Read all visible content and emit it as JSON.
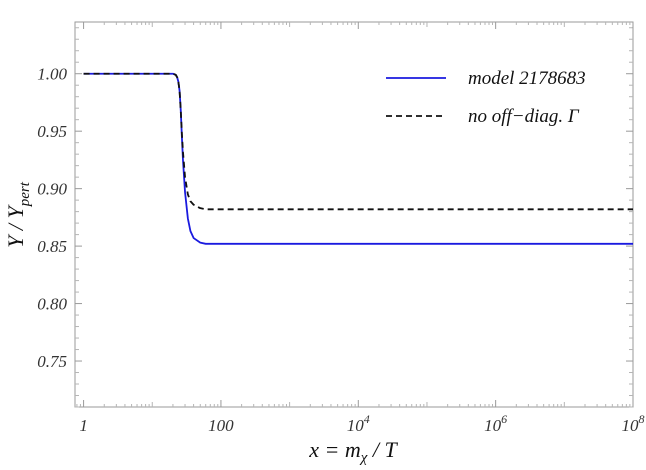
{
  "chart_data": {
    "type": "line",
    "xlabel": "x = m_χ / T",
    "ylabel": "Y / Y_pert",
    "x_scale": "log",
    "xlim": [
      0.75,
      100000000
    ],
    "ylim": [
      0.71,
      1.045
    ],
    "x_ticks": [
      {
        "value": 1,
        "label": "1"
      },
      {
        "value": 100,
        "label": "100"
      },
      {
        "value": 10000,
        "label": "10",
        "sup": "4"
      },
      {
        "value": 1000000,
        "label": "10",
        "sup": "6"
      },
      {
        "value": 100000000,
        "label": "10",
        "sup": "8"
      }
    ],
    "y_ticks": [
      {
        "value": 0.75,
        "label": "0.75"
      },
      {
        "value": 0.8,
        "label": "0.80"
      },
      {
        "value": 0.85,
        "label": "0.85"
      },
      {
        "value": 0.9,
        "label": "0.90"
      },
      {
        "value": 0.95,
        "label": "0.95"
      },
      {
        "value": 1.0,
        "label": "1.00"
      }
    ],
    "legend_position": "top-right",
    "series": [
      {
        "name": "model 2178683",
        "color": "#1a1adf",
        "dash": "solid",
        "x": [
          1,
          10,
          20,
          22,
          23,
          24,
          25,
          26,
          27,
          28,
          30,
          33,
          36,
          40,
          50,
          60,
          80,
          100,
          1000,
          100000000
        ],
        "y": [
          1.0,
          1.0,
          1.0,
          0.999,
          0.997,
          0.993,
          0.985,
          0.968,
          0.945,
          0.925,
          0.897,
          0.874,
          0.863,
          0.857,
          0.853,
          0.852,
          0.852,
          0.852,
          0.852,
          0.852
        ]
      },
      {
        "name": "no off−diag. Γ",
        "color": "#111111",
        "dash": "dashed",
        "x": [
          1,
          10,
          20,
          22,
          23,
          24,
          25,
          26,
          27,
          28,
          30,
          33,
          36,
          40,
          50,
          60,
          80,
          100,
          1000,
          100000000
        ],
        "y": [
          1.0,
          1.0,
          1.0,
          0.999,
          0.997,
          0.993,
          0.985,
          0.968,
          0.948,
          0.932,
          0.91,
          0.895,
          0.889,
          0.886,
          0.883,
          0.882,
          0.882,
          0.882,
          0.882,
          0.882
        ]
      }
    ]
  }
}
